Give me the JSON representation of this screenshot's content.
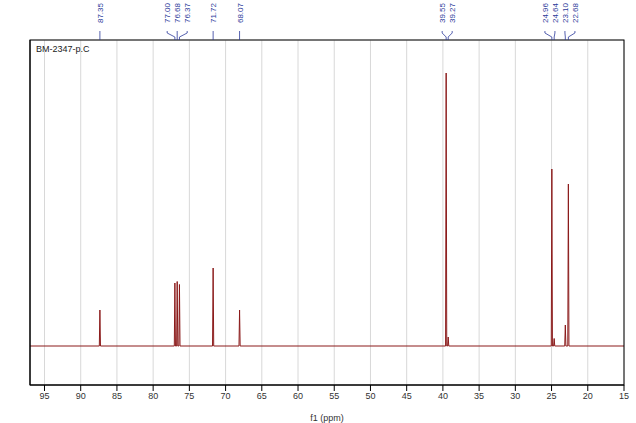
{
  "chart_data": {
    "type": "line",
    "title": "BM-2347-p.C",
    "x_label": "f1 (ppm)",
    "x": [
      97,
      87.43,
      87.35,
      87.27,
      77.08,
      77.0,
      76.92,
      76.76,
      76.68,
      76.6,
      76.45,
      76.37,
      76.29,
      71.8,
      71.72,
      71.64,
      68.15,
      68.07,
      67.99,
      39.63,
      39.55,
      39.47,
      39.35,
      39.27,
      39.19,
      25.04,
      24.96,
      24.88,
      24.72,
      24.64,
      24.56,
      23.18,
      23.1,
      23.02,
      22.76,
      22.68,
      22.6,
      15
    ],
    "values": [
      0,
      0,
      1.2,
      0,
      0,
      2.1,
      0,
      0,
      2.15,
      0,
      0,
      2.05,
      0,
      0,
      2.6,
      0,
      0,
      1.2,
      0,
      0,
      9.1,
      0,
      0,
      0.3,
      0,
      0,
      5.9,
      0,
      0,
      0.25,
      0,
      0,
      0.7,
      0,
      0,
      5.4,
      0,
      0
    ],
    "color": "#8b1a1a",
    "peak_labels": [
      {
        "value": 87.35,
        "label": "87.35"
      },
      {
        "value": 77.0,
        "label": "77.00"
      },
      {
        "value": 76.68,
        "label": "76.68"
      },
      {
        "value": 76.37,
        "label": "76.37"
      },
      {
        "value": 71.72,
        "label": "71.72"
      },
      {
        "value": 68.07,
        "label": "68.07"
      },
      {
        "value": 39.55,
        "label": "39.55"
      },
      {
        "value": 39.27,
        "label": "39.27"
      },
      {
        "value": 24.96,
        "label": "24.96"
      },
      {
        "value": 24.64,
        "label": "24.64"
      },
      {
        "value": 23.1,
        "label": "23.10"
      },
      {
        "value": 22.68,
        "label": "22.68"
      }
    ],
    "xlim": [
      97,
      15
    ],
    "xticks": [
      95,
      90,
      85,
      80,
      75,
      70,
      65,
      60,
      55,
      50,
      45,
      40,
      35,
      30,
      25,
      20,
      15
    ],
    "ylim": [
      -1.3,
      10.2
    ],
    "yticks": [
      0,
      1,
      2,
      3,
      4,
      5,
      6,
      7,
      8,
      9,
      10
    ],
    "grid": true,
    "tick_labels": "x"
  }
}
